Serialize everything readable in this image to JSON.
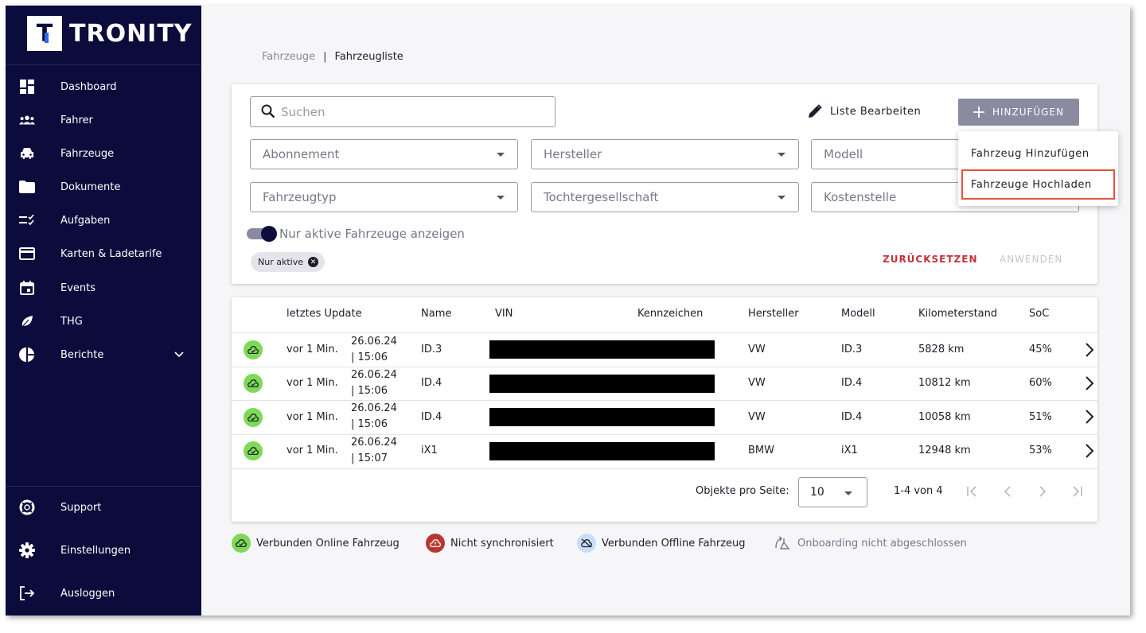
{
  "brand": {
    "name": "TRONITY",
    "logo_letter": "T"
  },
  "sidebar": {
    "items": [
      {
        "label": "Dashboard",
        "icon": "dashboard-icon"
      },
      {
        "label": "Fahrer",
        "icon": "people-icon"
      },
      {
        "label": "Fahrzeuge",
        "icon": "car-icon"
      },
      {
        "label": "Dokumente",
        "icon": "folder-icon"
      },
      {
        "label": "Aufgaben",
        "icon": "checklist-icon"
      },
      {
        "label": "Karten & Ladetarife",
        "icon": "card-icon"
      },
      {
        "label": "Events",
        "icon": "calendar-icon"
      },
      {
        "label": "THG",
        "icon": "leaf-icon"
      },
      {
        "label": "Berichte",
        "icon": "pie-chart-icon"
      }
    ],
    "bottom": [
      {
        "label": "Support",
        "icon": "lifebuoy-icon"
      },
      {
        "label": "Einstellungen",
        "icon": "gear-icon"
      },
      {
        "label": "Ausloggen",
        "icon": "logout-icon"
      }
    ]
  },
  "breadcrumb": {
    "parent": "Fahrzeuge",
    "separator": "|",
    "current": "Fahrzeugliste"
  },
  "filters": {
    "search_placeholder": "Suchen",
    "edit_list": "Liste Bearbeiten",
    "add_button": "HINZUFÜGEN",
    "selects": {
      "abonnement": "Abonnement",
      "hersteller": "Hersteller",
      "modell": "Modell",
      "fahrzeugtyp": "Fahrzeugtyp",
      "tochtergesellschaft": "Tochtergesellschaft",
      "kostenstelle": "Kostenstelle"
    },
    "toggle_label": "Nur aktive Fahrzeuge anzeigen",
    "toggle_on": true,
    "chip": "Nur aktive",
    "reset": "ZURÜCKSETZEN",
    "apply": "ANWENDEN"
  },
  "add_menu": {
    "items": [
      "Fahrzeug Hinzufügen",
      "Fahrzeuge Hochladen"
    ],
    "highlighted": "Fahrzeuge Hochladen"
  },
  "table": {
    "columns": {
      "last_update": "letztes Update",
      "name": "Name",
      "vin": "VIN",
      "plate": "Kennzeichen",
      "maker": "Hersteller",
      "model": "Modell",
      "mileage": "Kilometerstand",
      "soc": "SoC"
    },
    "rows": [
      {
        "ago": "vor 1 Min.",
        "date": "26.06.24",
        "time": "| 15:06",
        "name": "ID.3",
        "maker": "VW",
        "model": "ID.3",
        "mileage": "5828 km",
        "soc": "45%"
      },
      {
        "ago": "vor 1 Min.",
        "date": "26.06.24",
        "time": "| 15:06",
        "name": "ID.4",
        "maker": "VW",
        "model": "ID.4",
        "mileage": "10812 km",
        "soc": "60%"
      },
      {
        "ago": "vor 1 Min.",
        "date": "26.06.24",
        "time": "| 15:06",
        "name": "ID.4",
        "maker": "VW",
        "model": "ID.4",
        "mileage": "10058 km",
        "soc": "51%"
      },
      {
        "ago": "vor 1 Min.",
        "date": "26.06.24",
        "time": "| 15:07",
        "name": "iX1",
        "maker": "BMW",
        "model": "iX1",
        "mileage": "12948 km",
        "soc": "53%"
      }
    ],
    "pagination": {
      "per_page_label": "Objekte pro Seite:",
      "per_page": "10",
      "range": "1-4 von 4"
    }
  },
  "legend": [
    {
      "label": "Verbunden Online Fahrzeug",
      "color": "#7ed957",
      "icon": "cloud-online-icon"
    },
    {
      "label": "Nicht synchronisiert",
      "color": "#b8372e",
      "icon": "cloud-warning-icon"
    },
    {
      "label": "Verbunden Offline Fahrzeug",
      "color": "#c9def5",
      "icon": "cloud-off-icon"
    },
    {
      "label": "Onboarding nicht abgeschlossen",
      "color": "#77778a",
      "icon": "onboarding-icon"
    }
  ],
  "colors": {
    "sidebar": "#0b0c3b",
    "online": "#7ed957",
    "reset": "#c0333a",
    "highlight": "#e5543d"
  }
}
